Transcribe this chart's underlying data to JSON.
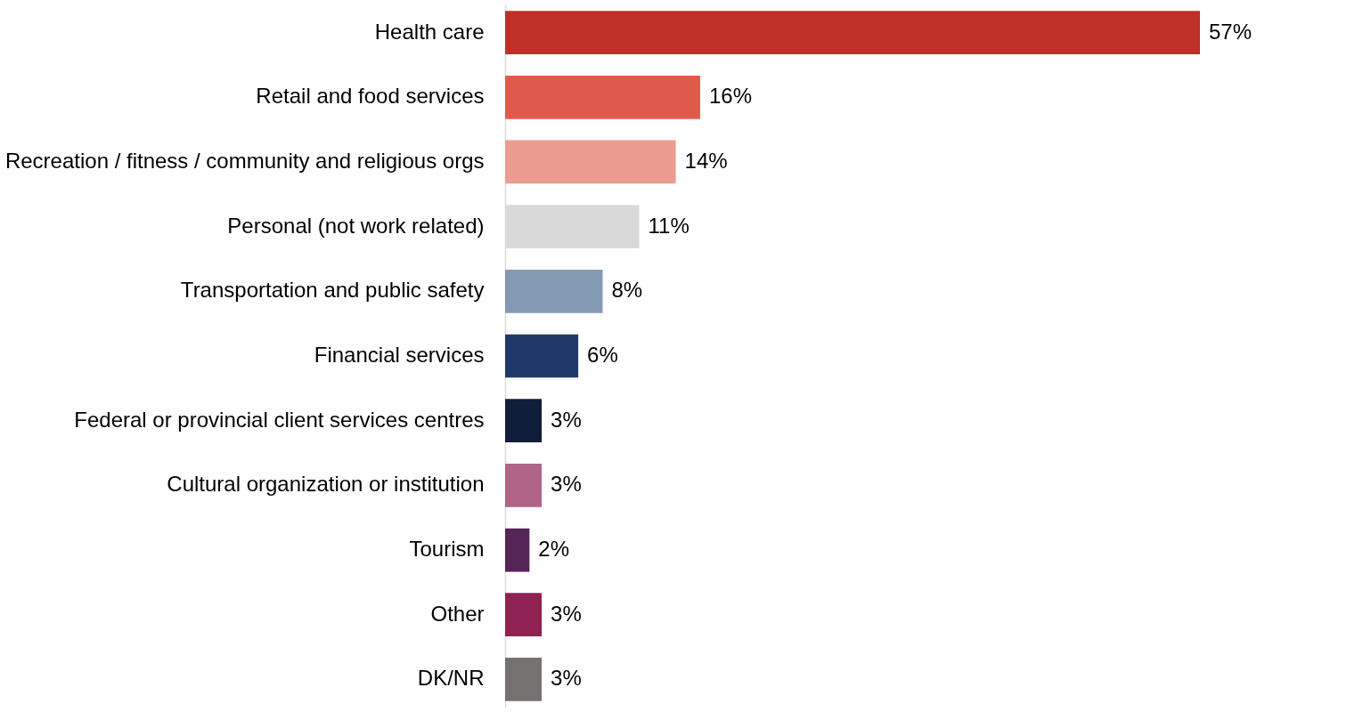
{
  "chart_data": {
    "type": "bar",
    "orientation": "horizontal",
    "categories": [
      "Health care",
      "Retail and food services",
      "Recreation / fitness / community and religious orgs",
      "Personal (not work related)",
      "Transportation and public safety",
      "Financial services",
      "Federal or provincial client services centres",
      "Cultural organization or institution",
      "Tourism",
      "Other",
      "DK/NR"
    ],
    "values": [
      57,
      16,
      14,
      11,
      8,
      6,
      3,
      3,
      2,
      3,
      3
    ],
    "value_labels": [
      "57%",
      "16%",
      "14%",
      "11%",
      "8%",
      "6%",
      "3%",
      "3%",
      "2%",
      "3%",
      "3%"
    ],
    "colors": [
      "#c0302a",
      "#e05a4b",
      "#eb9b90",
      "#d9d9d9",
      "#8499b3",
      "#1f3a68",
      "#111e3b",
      "#b06487",
      "#552558",
      "#8f2153",
      "#767171"
    ]
  }
}
